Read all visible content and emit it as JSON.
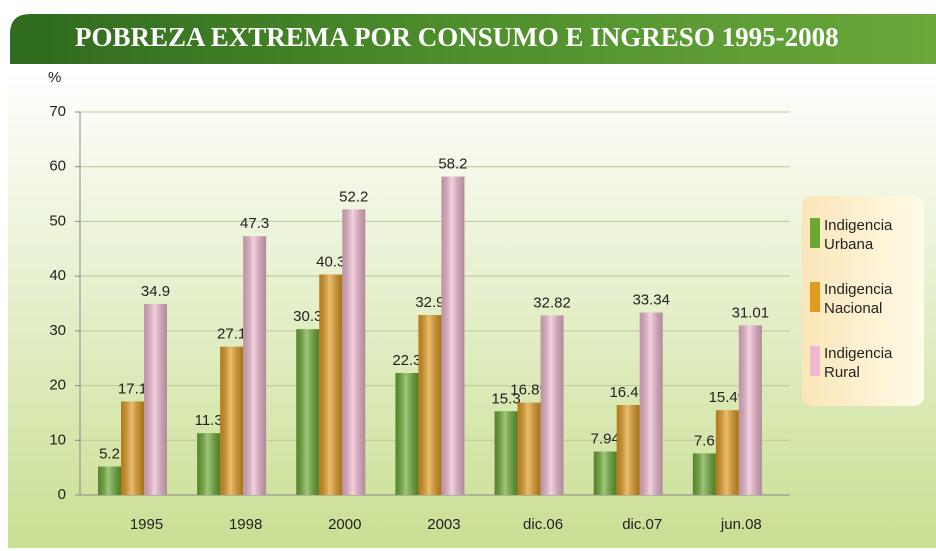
{
  "chart_data": {
    "type": "bar",
    "title": "POBREZA EXTREMA POR CONSUMO E INGRESO 1995-2008",
    "y_label": "%",
    "categories": [
      "1995",
      "1998",
      "2000",
      "2003",
      "dic.06",
      "dic.07",
      "jun.08"
    ],
    "series": [
      {
        "name": "Indigencia Urbana",
        "color": "#6aa832",
        "values": [
          5.2,
          11.3,
          30.3,
          22.3,
          15.3,
          7.94,
          7.6
        ]
      },
      {
        "name": "Indigencia Nacional",
        "color": "#e09a20",
        "values": [
          17.1,
          27.1,
          40.3,
          32.9,
          16.89,
          16.45,
          15.49
        ]
      },
      {
        "name": "Indigencia Rural",
        "color": "#eeb8d0",
        "values": [
          34.9,
          47.3,
          52.2,
          58.2,
          32.82,
          33.34,
          31.01
        ]
      }
    ],
    "ylim": [
      0,
      70
    ],
    "yticks": [
      0,
      10,
      20,
      30,
      40,
      50,
      60,
      70
    ],
    "grid": true,
    "legend": "right"
  }
}
